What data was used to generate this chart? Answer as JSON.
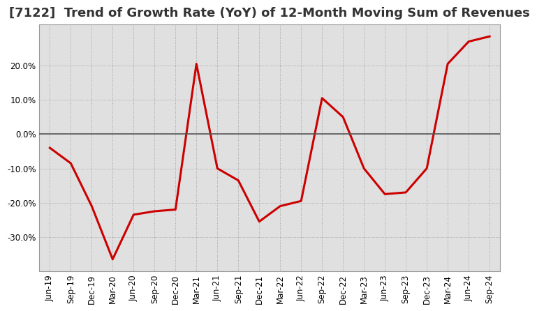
{
  "title": "[7122]  Trend of Growth Rate (YoY) of 12-Month Moving Sum of Revenues",
  "x_labels": [
    "Jun-19",
    "Sep-19",
    "Dec-19",
    "Mar-20",
    "Jun-20",
    "Sep-20",
    "Dec-20",
    "Mar-21",
    "Jun-21",
    "Sep-21",
    "Dec-21",
    "Mar-22",
    "Jun-22",
    "Sep-22",
    "Dec-22",
    "Mar-23",
    "Jun-23",
    "Sep-23",
    "Dec-23",
    "Mar-24",
    "Jun-24",
    "Sep-24"
  ],
  "y_values": [
    -4.0,
    -8.5,
    -21.0,
    -36.5,
    -23.5,
    -22.5,
    -22.0,
    20.5,
    -10.0,
    -13.5,
    -25.5,
    -21.0,
    -19.5,
    10.5,
    5.0,
    -10.0,
    -17.5,
    -17.0,
    -10.0,
    20.5,
    27.0,
    28.5
  ],
  "line_color": "#cc0000",
  "line_width": 2.2,
  "bg_color": "#ffffff",
  "plot_bg_color": "#e0e0e0",
  "grid_color": "#999999",
  "zero_line_color": "#555555",
  "ylim": [
    -40,
    32
  ],
  "yticks": [
    -30,
    -20,
    -10,
    0,
    10,
    20
  ],
  "title_fontsize": 13,
  "tick_fontsize": 8.5
}
